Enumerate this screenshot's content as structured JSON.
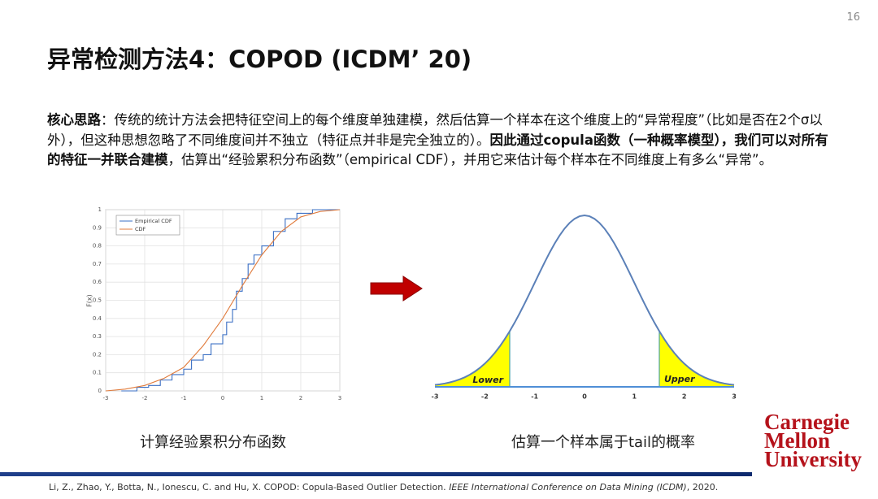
{
  "page_number": "16",
  "title": "异常检测方法4：COPOD (ICDM’ 20)",
  "paragraph": [
    {
      "text": "核心思路",
      "bold": true
    },
    {
      "text": "：传统的统计方法会把特征空间上的每个维度单独建模，然后估算一个样本在这个维度上的“异常程度”（比如是否在2个σ以外），但这种思想忽略了不同维度间并不独立（特征点并非是完全独立的）。",
      "bold": false
    },
    {
      "text": "因此通过copula函数（一种概率模型），我们可以对所有的特征一并联合建模",
      "bold": true
    },
    {
      "text": "，估算出“经验累积分布函数”（empirical CDF），并用它来估计每个样本在不同维度上有多么“异常”。",
      "bold": false
    }
  ],
  "left_chart": {
    "type": "line",
    "ylabel": "F(x)",
    "grid": true,
    "xlim": [
      -3,
      3
    ],
    "ylim": [
      0,
      1
    ],
    "xticks": [
      -3,
      -2,
      -1,
      0,
      1,
      2,
      3
    ],
    "yticks": [
      0,
      0.1,
      0.2,
      0.3,
      0.4,
      0.5,
      0.6,
      0.7,
      0.8,
      0.9,
      1
    ],
    "series": [
      {
        "name": "Empirical CDF",
        "color": "#3a6fc4",
        "step": true,
        "x": [
          -2.6,
          -2.2,
          -1.9,
          -1.6,
          -1.3,
          -1,
          -0.8,
          -0.5,
          -0.3,
          0,
          0.1,
          0.25,
          0.35,
          0.5,
          0.65,
          0.8,
          1,
          1.3,
          1.6,
          1.9,
          2.3,
          3
        ],
        "values": [
          0,
          0.02,
          0.03,
          0.06,
          0.09,
          0.12,
          0.17,
          0.2,
          0.26,
          0.31,
          0.38,
          0.45,
          0.55,
          0.62,
          0.7,
          0.75,
          0.8,
          0.88,
          0.95,
          0.98,
          1,
          1
        ]
      },
      {
        "name": "CDF",
        "color": "#e07b3c",
        "step": false,
        "x": [
          -3,
          -2.5,
          -2,
          -1.5,
          -1,
          -0.5,
          0,
          0.5,
          1,
          1.5,
          2,
          2.5,
          3
        ],
        "values": [
          0,
          0.01,
          0.03,
          0.07,
          0.13,
          0.25,
          0.4,
          0.58,
          0.75,
          0.88,
          0.96,
          0.99,
          1
        ]
      }
    ]
  },
  "right_chart": {
    "type": "normal-tails",
    "xlim": [
      -3,
      3
    ],
    "xticks": [
      -3,
      -2,
      -1,
      0,
      1,
      2,
      3
    ],
    "lower_bound": -1.5,
    "upper_bound": 1.5,
    "color": "#5b80b8",
    "shade_color": "#ffff00",
    "lower_label": "Lower",
    "upper_label": "Upper"
  },
  "captions": [
    "计算经验累积分布函数",
    "估算一个样本属于tail的概率"
  ],
  "logo": [
    "Carnegie",
    "Mellon",
    "University"
  ],
  "citation": [
    {
      "text": "Li, Z., Zhao, Y., Botta, N., Ionescu, C. and Hu, X. COPOD: Copula-Based Outlier Detection. ",
      "italic": false
    },
    {
      "text": "IEEE International Conference on Data Mining (ICDM)",
      "italic": true
    },
    {
      "text": ", 2020.",
      "italic": false
    }
  ]
}
